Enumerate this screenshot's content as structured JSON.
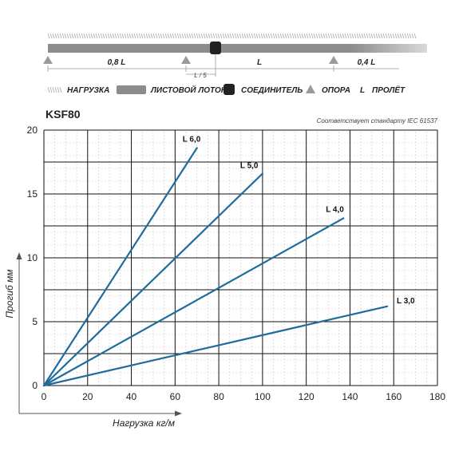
{
  "scheme": {
    "spans": [
      {
        "label": "0,8 L"
      },
      {
        "label": "L"
      },
      {
        "label": "0,4 L"
      }
    ],
    "connector_offset_label": "L / 5"
  },
  "legend": {
    "load": "НАГРУЗКА",
    "tray": "ЛИСТОВОЙ ЛОТОК",
    "connector": "СОЕДИНИТЕЛЬ",
    "support": "ОПОРА",
    "span_symbol": "L",
    "span": "ПРОЛЁТ"
  },
  "product": "KSF80",
  "compliance_note": "Соответствует стандарту IEC 61537",
  "colors": {
    "line": "#1f6c9c",
    "grid": "#111111",
    "minor_grid": "#c8c8c8",
    "tray": "#8c8c8c",
    "support": "#9a9a9a",
    "connector": "#222222"
  },
  "chart_data": {
    "type": "line",
    "title": "KSF80",
    "xlabel": "Нагрузка кг/м",
    "ylabel": "Прогиб мм",
    "xlim": [
      0,
      180
    ],
    "ylim": [
      0,
      20
    ],
    "xticks": [
      0,
      20,
      40,
      60,
      80,
      100,
      120,
      140,
      160,
      180
    ],
    "yticks": [
      0,
      5,
      10,
      15,
      20
    ],
    "grid": true,
    "series": [
      {
        "name": "L 6,0",
        "x": [
          0,
          70
        ],
        "y": [
          0,
          18.6
        ]
      },
      {
        "name": "L 5,0",
        "x": [
          0,
          100
        ],
        "y": [
          0,
          16.6
        ]
      },
      {
        "name": "L 4,0",
        "x": [
          0,
          137
        ],
        "y": [
          0,
          13.1
        ]
      },
      {
        "name": "L 3,0",
        "x": [
          0,
          157
        ],
        "y": [
          0,
          6.2
        ]
      }
    ]
  }
}
